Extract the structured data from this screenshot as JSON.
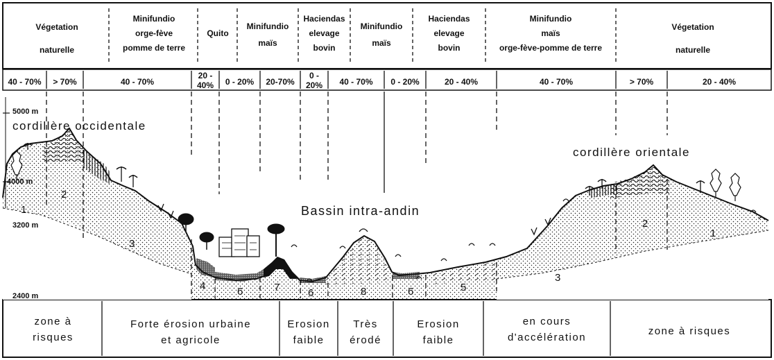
{
  "top_labels": [
    {
      "id": "veg-left",
      "text": "Végetation\nnaturelle"
    },
    {
      "id": "mini-1",
      "text": "Minifundio\norge-fève\npomme de terre"
    },
    {
      "id": "quito",
      "text": "Quito"
    },
    {
      "id": "mini-2",
      "text": "Minifundio\nmaïs"
    },
    {
      "id": "hac-1",
      "text": "Haciendas\nelevage\nbovin"
    },
    {
      "id": "mini-3",
      "text": "Minifundio\nmaïs"
    },
    {
      "id": "hac-2",
      "text": "Haciendas\nelevage\nbovin"
    },
    {
      "id": "mini-4",
      "text": "Minifundio\nmaïs\norge-fève-pomme de terre"
    },
    {
      "id": "veg-right",
      "text": "Végetation\nnaturelle"
    }
  ],
  "slopes": [
    "40 - 70%",
    "> 70%",
    "40 - 70%",
    "20 -\n40%",
    "0 - 20%",
    "20-70%",
    "0 -\n20%",
    "40 - 70%",
    "0 - 20%",
    "20 - 40%",
    "40 - 70%",
    "> 70%",
    "20 - 40%"
  ],
  "altitudes": [
    "5000 m",
    "4000 m",
    "3200 m",
    "2400 m"
  ],
  "region_labels": {
    "west": "cordillère  occidentale",
    "east": "cordillère  orientale",
    "basin": "Bassin  intra-andin"
  },
  "zone_numbers": [
    "1",
    "2",
    "3",
    "4",
    "6",
    "7",
    "6",
    "8",
    "6",
    "5",
    "3",
    "2",
    "1"
  ],
  "bottom_labels": [
    "zone à\nrisques",
    "Forte érosion urbaine\net agricole",
    "Erosion\nfaible",
    "Très\nérodé",
    "Erosion\nfaible",
    "en cours\nd'accélération",
    "zone à risques"
  ]
}
